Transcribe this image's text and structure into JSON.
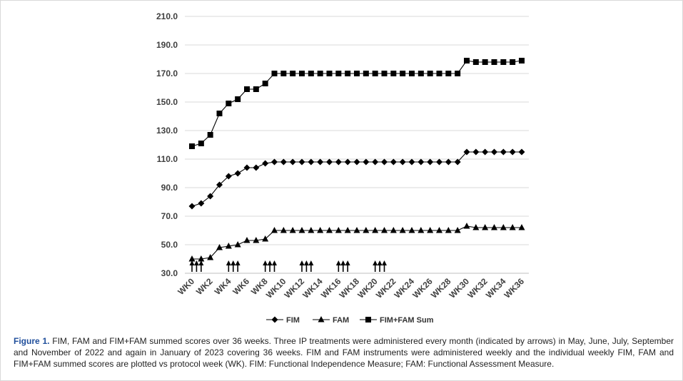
{
  "chart_data": {
    "type": "line",
    "x": [
      "WK0",
      "WK1",
      "WK2",
      "WK3",
      "WK4",
      "WK5",
      "WK6",
      "WK7",
      "WK8",
      "WK9",
      "WK10",
      "WK11",
      "WK12",
      "WK13",
      "WK14",
      "WK15",
      "WK16",
      "WK17",
      "WK18",
      "WK19",
      "WK20",
      "WK21",
      "WK22",
      "WK23",
      "WK24",
      "WK25",
      "WK26",
      "WK27",
      "WK28",
      "WK29",
      "WK30",
      "WK31",
      "WK32",
      "WK33",
      "WK34",
      "WK35",
      "WK36"
    ],
    "tick_labels": [
      "WK0",
      "WK2",
      "WK4",
      "WK6",
      "WK8",
      "WK10",
      "WK12",
      "WK14",
      "WK16",
      "WK18",
      "WK20",
      "WK22",
      "WK24",
      "WK26",
      "WK28",
      "WK30",
      "WK32",
      "WK34",
      "WK36"
    ],
    "ylim": [
      30,
      210
    ],
    "yticks": [
      30,
      50,
      70,
      90,
      110,
      130,
      150,
      170,
      190,
      210
    ],
    "grid": true,
    "legend_position": "bottom",
    "series": [
      {
        "name": "FIM",
        "marker": "diamond",
        "values": [
          77,
          79,
          84,
          92,
          98,
          100,
          104,
          104,
          107,
          108,
          108,
          108,
          108,
          108,
          108,
          108,
          108,
          108,
          108,
          108,
          108,
          108,
          108,
          108,
          108,
          108,
          108,
          108,
          108,
          108,
          115,
          115,
          115,
          115,
          115,
          115,
          115
        ]
      },
      {
        "name": "FAM",
        "marker": "triangle",
        "values": [
          40,
          40,
          41,
          48,
          49,
          50,
          53,
          53,
          54,
          60,
          60,
          60,
          60,
          60,
          60,
          60,
          60,
          60,
          60,
          60,
          60,
          60,
          60,
          60,
          60,
          60,
          60,
          60,
          60,
          60,
          63,
          62,
          62,
          62,
          62,
          62,
          62
        ]
      },
      {
        "name": "FIM+FAM Sum",
        "marker": "square",
        "values": [
          119,
          121,
          127,
          142,
          149,
          152,
          159,
          159,
          163,
          170,
          170,
          170,
          170,
          170,
          170,
          170,
          170,
          170,
          170,
          170,
          170,
          170,
          170,
          170,
          170,
          170,
          170,
          170,
          170,
          170,
          179,
          178,
          178,
          178,
          178,
          178,
          179
        ]
      }
    ],
    "annotations": {
      "treatment_arrows_at_weeks": [
        0,
        0.5,
        1,
        4,
        4.5,
        5,
        8,
        8.5,
        9,
        12,
        12.5,
        13,
        16,
        16.5,
        17,
        20,
        20.5,
        21
      ]
    }
  },
  "caption": {
    "label": "Figure 1.",
    "text": " FIM, FAM and FIM+FAM summed scores over 36 weeks. Three IP treatments were administered every month (indicated by arrows) in May, June, July, September and November of 2022 and again in January of 2023 covering 36 weeks. FIM and FAM instruments were administered weekly and the individual weekly FIM, FAM and FIM+FAM summed scores are plotted vs protocol week (WK). FIM: Functional Independence Measure; FAM: Functional Assessment Measure."
  }
}
